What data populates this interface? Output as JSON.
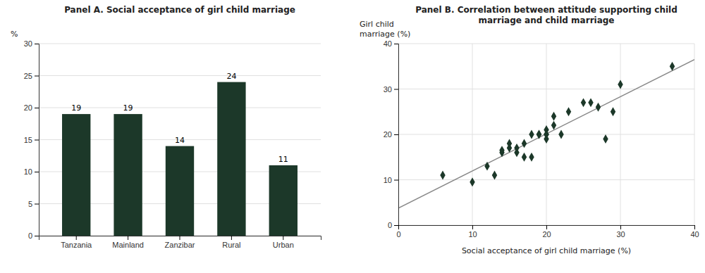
{
  "chart_data": [
    {
      "type": "bar",
      "title": "Panel A. Social acceptance of girl child marriage",
      "ylabel": "%",
      "categories": [
        "Tanzania",
        "Mainland",
        "Zanzibar",
        "Rural",
        "Urban"
      ],
      "values": [
        19,
        19,
        14,
        24,
        11
      ],
      "color": "#1c3829",
      "ylim": [
        0,
        30
      ],
      "yticks": [
        0,
        5,
        10,
        15,
        20,
        25,
        30
      ],
      "grid": true,
      "data_labels": true
    },
    {
      "type": "scatter",
      "title": "Panel B. Correlation between attitude supporting child\nmarriage and child marriage",
      "xlabel": "Social acceptance of girl child marriage (%)",
      "ylabel": "Girl child\nmarriage (%)",
      "xlim": [
        0,
        40
      ],
      "ylim": [
        0,
        40
      ],
      "xticks": [
        0,
        10,
        20,
        30,
        40
      ],
      "yticks": [
        0,
        10,
        20,
        30,
        40
      ],
      "grid": true,
      "series": [
        {
          "type": "scatter",
          "color": "#1c3829",
          "marker": "diamond",
          "x": [
            6,
            10,
            12,
            13,
            14,
            14,
            15,
            15,
            16,
            16,
            17,
            17,
            18,
            18,
            19,
            19,
            20,
            20,
            20,
            20,
            21,
            21,
            22,
            23,
            25,
            26,
            27,
            28,
            29,
            30,
            37
          ],
          "values": [
            11,
            9.5,
            13,
            11,
            16,
            16.5,
            17,
            18,
            16,
            17,
            18,
            15,
            20,
            15,
            20,
            20,
            20,
            21,
            19,
            20,
            24,
            22,
            20,
            25,
            27,
            27,
            26,
            19,
            25,
            31,
            35
          ]
        },
        {
          "type": "line",
          "color": "#888888",
          "line_style": "solid",
          "x": [
            0,
            40
          ],
          "values": [
            3.7635,
            36.4827
          ]
        }
      ]
    }
  ]
}
